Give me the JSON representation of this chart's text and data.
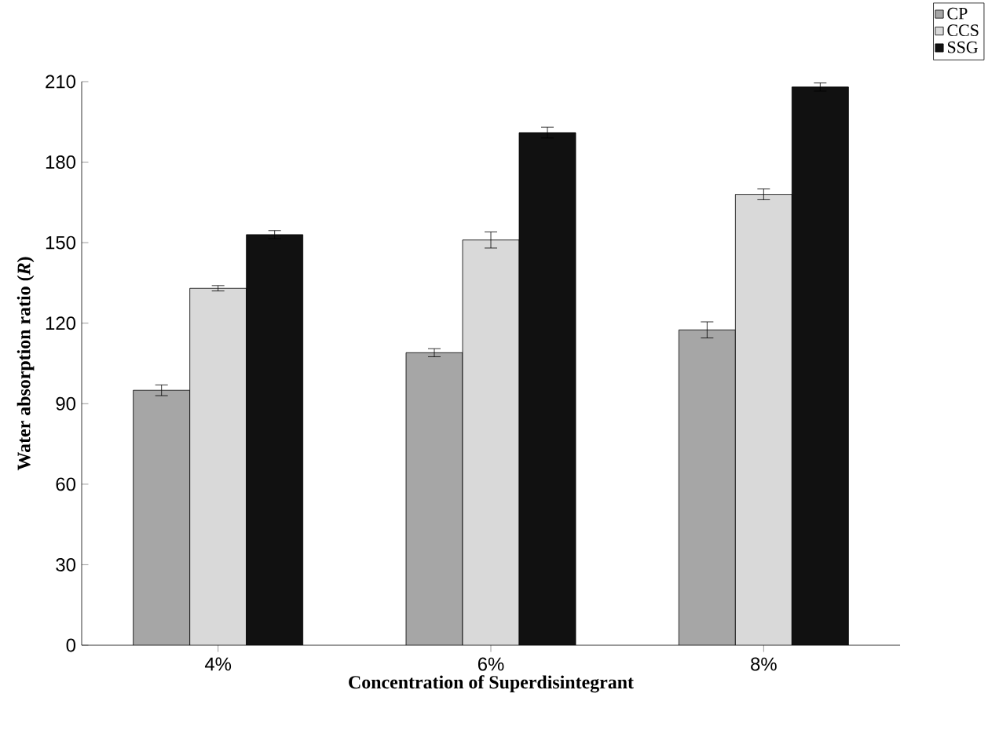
{
  "chart_data": {
    "type": "bar",
    "xlabel": "Concentration of Superdisintegrant",
    "ylabel": "Water absorption ratio (*R*)",
    "categories": [
      "4%",
      "6%",
      "8%"
    ],
    "series": [
      {
        "name": "CP",
        "color": "#a6a6a6",
        "values": [
          95,
          109,
          117.5
        ],
        "errors": [
          2,
          1.5,
          3
        ]
      },
      {
        "name": "CCS",
        "color": "#d9d9d9",
        "values": [
          133,
          151,
          168
        ],
        "errors": [
          1,
          3,
          2
        ]
      },
      {
        "name": "SSG",
        "color": "#111111",
        "values": [
          153,
          191,
          208
        ],
        "errors": [
          1.5,
          2,
          1.5
        ]
      }
    ],
    "ylim": [
      0,
      210
    ],
    "yticks": [
      0,
      30,
      60,
      90,
      120,
      150,
      180,
      210
    ],
    "legend": "top right",
    "grid": false
  }
}
